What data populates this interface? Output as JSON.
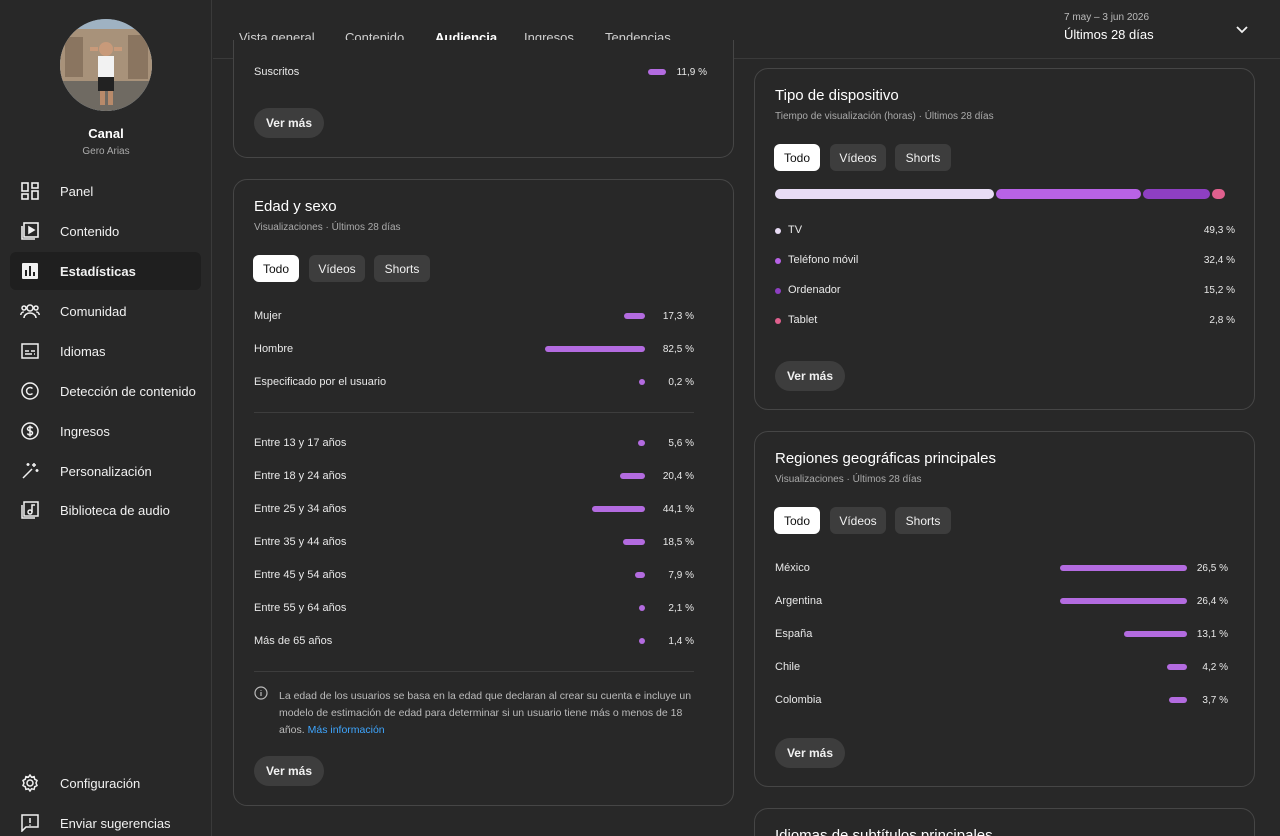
{
  "channel": {
    "title": "Canal",
    "name": "Gero Arias"
  },
  "sidebar": {
    "items": [
      {
        "label": "Panel",
        "icon": "dashboard-icon"
      },
      {
        "label": "Contenido",
        "icon": "content-icon"
      },
      {
        "label": "Estadísticas",
        "icon": "analytics-icon"
      },
      {
        "label": "Comunidad",
        "icon": "community-icon"
      },
      {
        "label": "Idiomas",
        "icon": "subtitles-icon"
      },
      {
        "label": "Detección de contenido",
        "icon": "copyright-icon"
      },
      {
        "label": "Ingresos",
        "icon": "dollar-icon"
      },
      {
        "label": "Personalización",
        "icon": "magic-wand-icon"
      },
      {
        "label": "Biblioteca de audio",
        "icon": "audio-library-icon"
      }
    ],
    "bottom": [
      {
        "label": "Configuración",
        "icon": "gear-icon"
      },
      {
        "label": "Enviar sugerencias",
        "icon": "feedback-icon"
      }
    ]
  },
  "tabs": [
    "Vista general",
    "Contenido",
    "Audiencia",
    "Ingresos",
    "Tendencias"
  ],
  "active_tab": "Audiencia",
  "date": {
    "range": "7 may – 3 jun 2026",
    "label": "Últimos 28 días"
  },
  "subscribed_card": {
    "row_label": "Suscritos",
    "row_value": "11,9 %",
    "row_fraction": 0.119,
    "button": "Ver más"
  },
  "age_gender": {
    "title": "Edad y sexo",
    "subtitle": "Visualizaciones · Últimos 28 días",
    "filters": [
      "Todo",
      "Vídeos",
      "Shorts"
    ],
    "gender": [
      {
        "label": "Mujer",
        "value": "17,3 %",
        "fraction": 0.173
      },
      {
        "label": "Hombre",
        "value": "82,5 %",
        "fraction": 0.825
      },
      {
        "label": "Especificado por el usuario",
        "value": "0,2 %",
        "fraction": 0.002
      }
    ],
    "ages": [
      {
        "label": "Entre 13 y 17 años",
        "value": "5,6 %",
        "fraction": 0.056
      },
      {
        "label": "Entre 18 y 24 años",
        "value": "20,4 %",
        "fraction": 0.204
      },
      {
        "label": "Entre 25 y 34 años",
        "value": "44,1 %",
        "fraction": 0.441
      },
      {
        "label": "Entre 35 y 44 años",
        "value": "18,5 %",
        "fraction": 0.185
      },
      {
        "label": "Entre 45 y 54 años",
        "value": "7,9 %",
        "fraction": 0.079
      },
      {
        "label": "Entre 55 y 64 años",
        "value": "2,1 %",
        "fraction": 0.021
      },
      {
        "label": "Más de 65 años",
        "value": "1,4 %",
        "fraction": 0.014
      }
    ],
    "note": "La edad de los usuarios se basa en la edad que declaran al crear su cuenta e incluye un modelo de estimación de edad para determinar si un usuario tiene más o menos de 18 años.",
    "note_link": "Más información",
    "button": "Ver más"
  },
  "device": {
    "title": "Tipo de dispositivo",
    "subtitle": "Tiempo de visualización (horas) · Últimos 28 días",
    "filters": [
      "Todo",
      "Vídeos",
      "Shorts"
    ],
    "items": [
      {
        "label": "TV",
        "value": "49,3 %",
        "fraction": 0.493,
        "color": "#e8dcf5"
      },
      {
        "label": "Teléfono móvil",
        "value": "32,4 %",
        "fraction": 0.324,
        "color": "#b862e6"
      },
      {
        "label": "Ordenador",
        "value": "15,2 %",
        "fraction": 0.152,
        "color": "#8e3fc2"
      },
      {
        "label": "Tablet",
        "value": "2,8 %",
        "fraction": 0.028,
        "color": "#e0608e"
      }
    ],
    "button": "Ver más"
  },
  "regions": {
    "title": "Regiones geográficas principales",
    "subtitle": "Visualizaciones · Últimos 28 días",
    "filters": [
      "Todo",
      "Vídeos",
      "Shorts"
    ],
    "items": [
      {
        "label": "México",
        "value": "26,5 %",
        "fraction": 0.265
      },
      {
        "label": "Argentina",
        "value": "26,4 %",
        "fraction": 0.264
      },
      {
        "label": "España",
        "value": "13,1 %",
        "fraction": 0.131
      },
      {
        "label": "Chile",
        "value": "4,2 %",
        "fraction": 0.042
      },
      {
        "label": "Colombia",
        "value": "3,7 %",
        "fraction": 0.037
      }
    ],
    "button": "Ver más"
  },
  "subtitles_card": {
    "title": "Idiomas de subtítulos principales"
  },
  "colors": {
    "accent": "#b36be0",
    "link": "#3ea6ff",
    "background": "#282828"
  }
}
